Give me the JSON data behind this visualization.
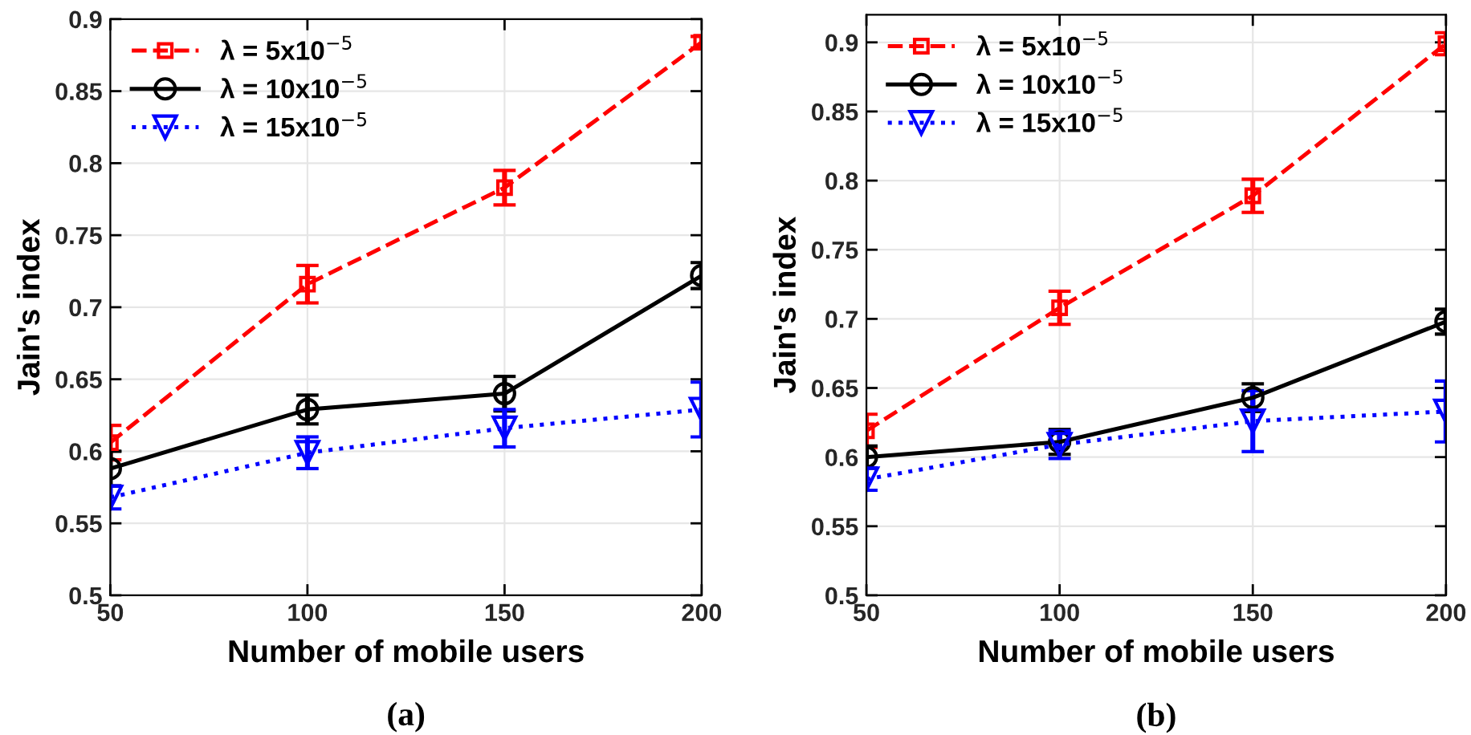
{
  "chart_data": [
    {
      "type": "line",
      "xlabel": "Number of mobile users",
      "ylabel": "Jain's index",
      "annotations": [
        "(a)"
      ],
      "x": [
        50,
        100,
        150,
        200
      ],
      "xlim": [
        50,
        200
      ],
      "xticks": [
        50,
        100,
        150,
        200
      ],
      "ylim": [
        0.5,
        0.9
      ],
      "yticks": [
        0.5,
        0.55,
        0.6,
        0.65,
        0.7,
        0.75,
        0.8,
        0.85,
        0.9
      ],
      "grid": true,
      "legend": "top left",
      "series": [
        {
          "name": "λ = 5x10$^{−5}$",
          "color": "#ff0000",
          "marker": "square",
          "line_style": "dashed",
          "values": [
            0.606,
            0.716,
            0.783,
            0.884
          ],
          "errors": [
            0.012,
            0.013,
            0.012,
            0.004
          ]
        },
        {
          "name": "λ = 10x10$^{−5}$",
          "color": "#000000",
          "marker": "circle",
          "line_style": "solid",
          "values": [
            0.588,
            0.629,
            0.64,
            0.722
          ],
          "errors": [
            0.012,
            0.01,
            0.012,
            0.009
          ]
        },
        {
          "name": "λ = 15x10$^{−5}$",
          "color": "#0000ff",
          "marker": "triangle",
          "line_style": "dotted",
          "values": [
            0.568,
            0.599,
            0.616,
            0.629
          ],
          "errors": [
            0.008,
            0.011,
            0.013,
            0.019
          ]
        }
      ]
    },
    {
      "type": "line",
      "xlabel": "Number of mobile users",
      "ylabel": "Jain's index",
      "annotations": [
        "(b)"
      ],
      "x": [
        50,
        100,
        150,
        200
      ],
      "xlim": [
        50,
        200
      ],
      "xticks": [
        50,
        100,
        150,
        200
      ],
      "ylim": [
        0.5,
        0.92
      ],
      "yticks": [
        0.5,
        0.55,
        0.6,
        0.65,
        0.7,
        0.75,
        0.8,
        0.85,
        0.9
      ],
      "grid": true,
      "legend": "top left",
      "series": [
        {
          "name": "λ = 5x10$^{−5}$",
          "color": "#ff0000",
          "marker": "square",
          "line_style": "dashed",
          "values": [
            0.619,
            0.708,
            0.789,
            0.899
          ],
          "errors": [
            0.012,
            0.012,
            0.012,
            0.008
          ]
        },
        {
          "name": "λ = 10x10$^{−5}$",
          "color": "#000000",
          "marker": "circle",
          "line_style": "solid",
          "values": [
            0.6,
            0.611,
            0.643,
            0.698
          ],
          "errors": [
            0.008,
            0.009,
            0.01,
            0.009
          ]
        },
        {
          "name": "λ = 15x10$^{−5}$",
          "color": "#0000ff",
          "marker": "triangle",
          "line_style": "dotted",
          "values": [
            0.584,
            0.609,
            0.626,
            0.633
          ],
          "errors": [
            0.008,
            0.01,
            0.022,
            0.022
          ]
        }
      ]
    }
  ]
}
